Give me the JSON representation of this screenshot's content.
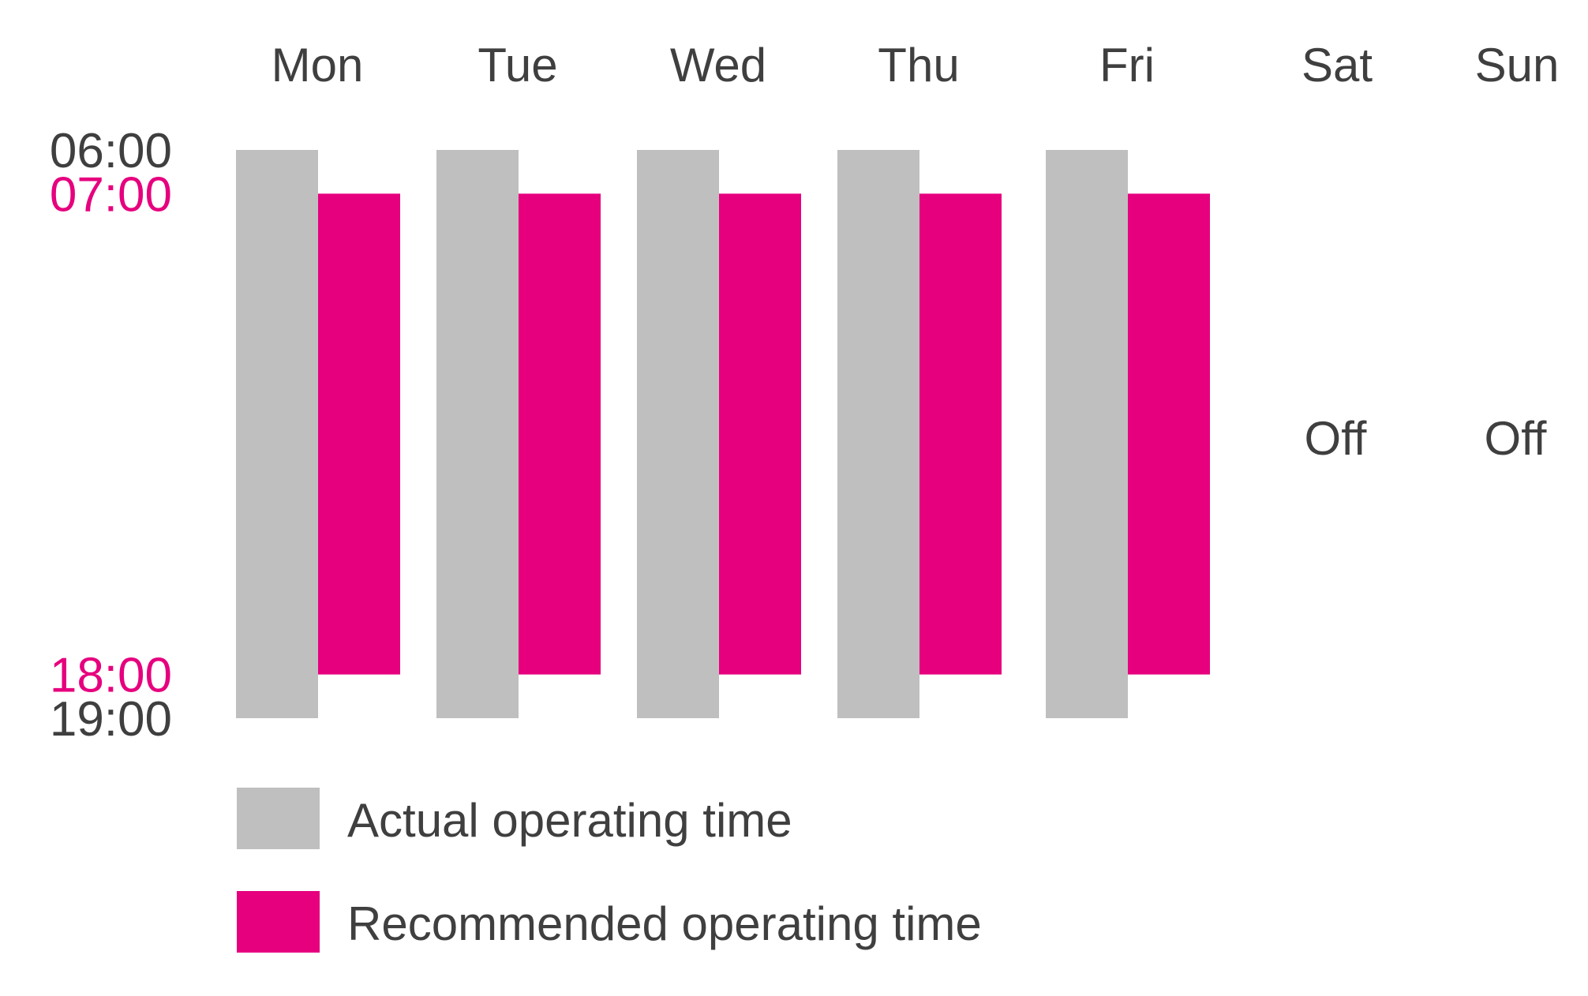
{
  "chart_data": {
    "type": "bar",
    "categories": [
      "Mon",
      "Tue",
      "Wed",
      "Thu",
      "Fri",
      "Sat",
      "Sun"
    ],
    "y_axis": {
      "ticks": [
        {
          "label": "06:00",
          "value": 6,
          "color": "#3f3f3f"
        },
        {
          "label": "07:00",
          "value": 7,
          "color": "#e6007e"
        },
        {
          "label": "18:00",
          "value": 18,
          "color": "#e6007e"
        },
        {
          "label": "19:00",
          "value": 19,
          "color": "#3f3f3f"
        }
      ],
      "inverted": true
    },
    "series": [
      {
        "name": "Actual operating time",
        "color": "#bfbfbf",
        "ranges": [
          [
            6,
            19
          ],
          [
            6,
            19
          ],
          [
            6,
            19
          ],
          [
            6,
            19
          ],
          [
            6,
            19
          ],
          null,
          null
        ]
      },
      {
        "name": "Recommended operating time",
        "color": "#e6007e",
        "ranges": [
          [
            7,
            18
          ],
          [
            7,
            18
          ],
          [
            7,
            18
          ],
          [
            7,
            18
          ],
          [
            7,
            18
          ],
          null,
          null
        ]
      }
    ],
    "off_days": [
      {
        "day": "Sat",
        "label": "Off"
      },
      {
        "day": "Sun",
        "label": "Off"
      }
    ],
    "legend": {
      "placement": "bottom-left"
    },
    "grid": false
  }
}
